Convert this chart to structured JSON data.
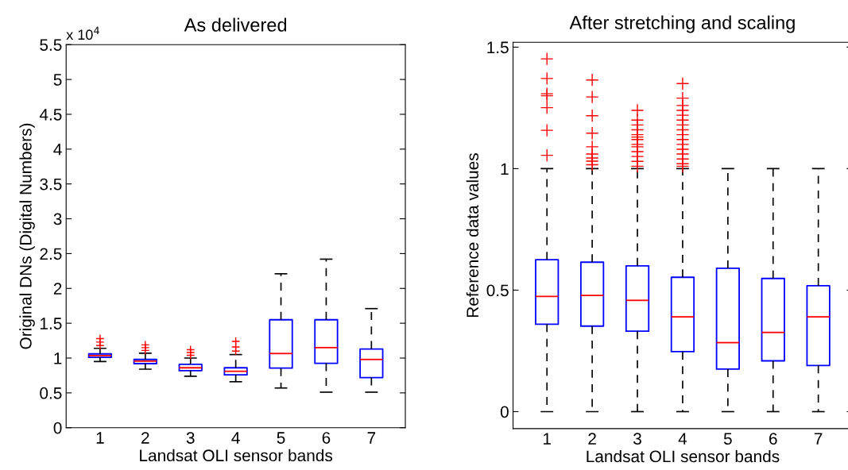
{
  "chart_data": [
    {
      "type": "box",
      "title": "As delivered",
      "xlabel": "Landsat OLI sensor bands",
      "ylabel": "Original DNs (Digital Numbers)",
      "annotations": [
        "x 10$^{4}$"
      ],
      "categories": [
        "1",
        "2",
        "3",
        "4",
        "5",
        "6",
        "7"
      ],
      "ylim": [
        0,
        5.5
      ],
      "yticks": [
        0,
        0.5,
        1,
        1.5,
        2,
        2.5,
        3,
        3.5,
        4,
        4.5,
        5,
        5.5
      ],
      "marker": "cross",
      "series": [
        {
          "color": "#0000ff",
          "boxes": [
            {
              "low": 0.95,
              "q1": 1.01,
              "median": 1.035,
              "q3": 1.06,
              "high": 1.14,
              "outliers": [
                1.18,
                1.23,
                1.28
              ]
            },
            {
              "low": 0.84,
              "q1": 0.92,
              "median": 0.955,
              "q3": 0.98,
              "high": 1.07,
              "outliers": [
                1.11,
                1.15,
                1.19
              ]
            },
            {
              "low": 0.74,
              "q1": 0.82,
              "median": 0.86,
              "q3": 0.91,
              "high": 1.0,
              "outliers": [
                1.04,
                1.08,
                1.12
              ]
            },
            {
              "low": 0.66,
              "q1": 0.76,
              "median": 0.81,
              "q3": 0.86,
              "high": 1.05,
              "outliers": [
                1.1,
                1.16,
                1.24
              ]
            },
            {
              "low": 0.57,
              "q1": 0.855,
              "median": 1.065,
              "q3": 1.55,
              "high": 2.21
            },
            {
              "low": 0.51,
              "q1": 0.925,
              "median": 1.15,
              "q3": 1.55,
              "high": 2.42
            },
            {
              "low": 0.51,
              "q1": 0.72,
              "median": 0.98,
              "q3": 1.13,
              "high": 1.71
            }
          ]
        }
      ]
    },
    {
      "type": "box",
      "title": "After stretching and scaling",
      "xlabel": "Landsat OLI sensor bands",
      "ylabel": "Reference data values",
      "categories": [
        "1",
        "2",
        "3",
        "4",
        "5",
        "6",
        "7"
      ],
      "ylim": [
        -0.07,
        1.52
      ],
      "yticks": [
        0,
        0.5,
        1,
        1.5
      ],
      "marker": "cross",
      "series": [
        {
          "color": "#0000ff",
          "boxes": [
            {
              "low": 0,
              "q1": 0.36,
              "median": 0.474,
              "q3": 0.625,
              "high": 1,
              "outliers": [
                1.055,
                1.158,
                1.251,
                1.3,
                1.308,
                1.371,
                1.452
              ]
            },
            {
              "low": 0,
              "q1": 0.352,
              "median": 0.478,
              "q3": 0.615,
              "high": 1,
              "outliers": [
                1.016,
                1.031,
                1.044,
                1.06,
                1.09,
                1.146,
                1.218,
                1.295,
                1.365
              ]
            },
            {
              "low": 0,
              "q1": 0.331,
              "median": 0.458,
              "q3": 0.6,
              "high": 1,
              "outliers": [
                1.01,
                1.03,
                1.05,
                1.07,
                1.09,
                1.1,
                1.12,
                1.13,
                1.14,
                1.16,
                1.18,
                1.2,
                1.24
              ]
            },
            {
              "low": 0,
              "q1": 0.247,
              "median": 0.39,
              "q3": 0.553,
              "high": 1,
              "outliers": [
                1.01,
                1.02,
                1.04,
                1.06,
                1.08,
                1.1,
                1.12,
                1.14,
                1.16,
                1.18,
                1.2,
                1.22,
                1.24,
                1.26,
                1.29,
                1.35
              ]
            },
            {
              "low": 0,
              "q1": 0.175,
              "median": 0.284,
              "q3": 0.59,
              "high": 1
            },
            {
              "low": 0,
              "q1": 0.209,
              "median": 0.326,
              "q3": 0.548,
              "high": 1
            },
            {
              "low": 0,
              "q1": 0.19,
              "median": 0.39,
              "q3": 0.518,
              "high": 1
            }
          ]
        }
      ]
    }
  ]
}
